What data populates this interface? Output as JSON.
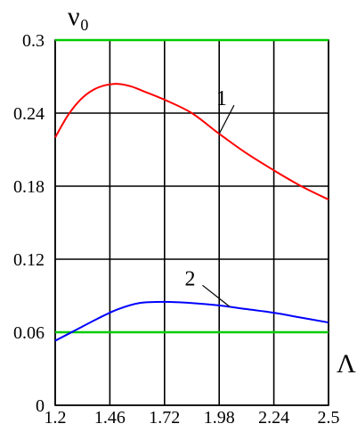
{
  "chart_data": {
    "type": "line",
    "ylabel": "ν₀",
    "xlabel": "Λ",
    "xlim": [
      1.2,
      2.5
    ],
    "ylim": [
      0,
      0.3
    ],
    "xticks": [
      "1.2",
      "1.46",
      "1.72",
      "1.98",
      "2.24",
      "2.5"
    ],
    "yticks": [
      "0",
      "0.06",
      "0.12",
      "0.18",
      "0.24",
      "0.3"
    ],
    "grid": true,
    "series": [
      {
        "name": "1",
        "color": "#ff0000",
        "x": [
          1.2,
          1.26,
          1.32,
          1.38,
          1.44,
          1.5,
          1.56,
          1.62,
          1.72,
          1.85,
          1.98,
          2.11,
          2.24,
          2.37,
          2.5
        ],
        "y": [
          0.22,
          0.238,
          0.251,
          0.259,
          0.263,
          0.264,
          0.262,
          0.258,
          0.251,
          0.24,
          0.223,
          0.207,
          0.193,
          0.18,
          0.169
        ]
      },
      {
        "name": "2",
        "color": "#0000ff",
        "x": [
          1.2,
          1.3,
          1.4,
          1.5,
          1.6,
          1.72,
          1.85,
          1.98,
          2.11,
          2.24,
          2.37,
          2.5
        ],
        "y": [
          0.053,
          0.062,
          0.071,
          0.079,
          0.084,
          0.085,
          0.084,
          0.082,
          0.079,
          0.076,
          0.072,
          0.068
        ]
      }
    ],
    "reference_lines": [
      {
        "y": 0.3,
        "color": "#00cc00"
      },
      {
        "y": 0.06,
        "color": "#00cc00"
      }
    ],
    "curve_labels": [
      {
        "text": "1",
        "x": 2.0,
        "y": 0.248,
        "points_to_x": 1.98,
        "points_to_y": 0.223
      },
      {
        "text": "2",
        "x": 1.85,
        "y": 0.1,
        "points_to_x": 2.03,
        "points_to_y": 0.081
      }
    ]
  }
}
